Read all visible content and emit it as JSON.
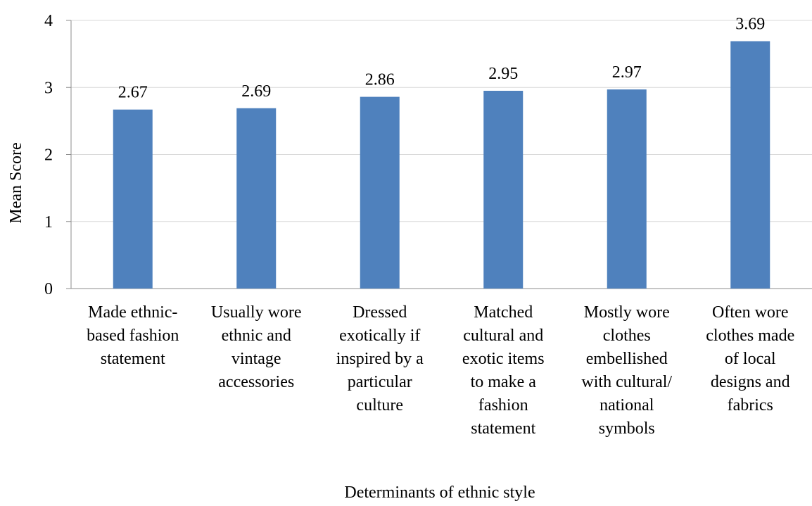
{
  "chart_data": {
    "type": "bar",
    "categories": [
      "Made ethnic-based fashion statement",
      "Usually wore ethnic and vintage accessories",
      "Dressed exotically if inspired by a particular culture",
      "Matched cultural and exotic items to make a fashion statement",
      "Mostly wore clothes embellished with cultural/ national symbols",
      "Often wore clothes made of local designs and fabrics"
    ],
    "category_label_lines": [
      [
        "Made ethnic-",
        "based fashion",
        "statement"
      ],
      [
        "Usually wore",
        "ethnic and",
        "vintage",
        "accessories"
      ],
      [
        "Dressed",
        "exotically if",
        "inspired by a",
        "particular",
        "culture"
      ],
      [
        "Matched",
        "cultural and",
        "exotic items",
        "to make a",
        "fashion",
        "statement"
      ],
      [
        "Mostly wore",
        "clothes",
        "embellished",
        "with cultural/",
        "national",
        "symbols"
      ],
      [
        "Often wore",
        "clothes made",
        "of local",
        "designs and",
        "fabrics"
      ]
    ],
    "values": [
      2.67,
      2.69,
      2.86,
      2.95,
      2.97,
      3.69
    ],
    "value_labels": [
      "2.67",
      "2.69",
      "2.86",
      "2.95",
      "2.97",
      "3.69"
    ],
    "title": "",
    "xlabel": "Determinants of ethnic style",
    "ylabel": "Mean Score",
    "ylim": [
      0,
      4
    ],
    "yticks": [
      0,
      1,
      2,
      3,
      4
    ],
    "grid": true,
    "legend": "none",
    "bar_color": "#4f81bd",
    "grid_color": "#d9d9d9",
    "axis_color": "#8c8c8c"
  }
}
